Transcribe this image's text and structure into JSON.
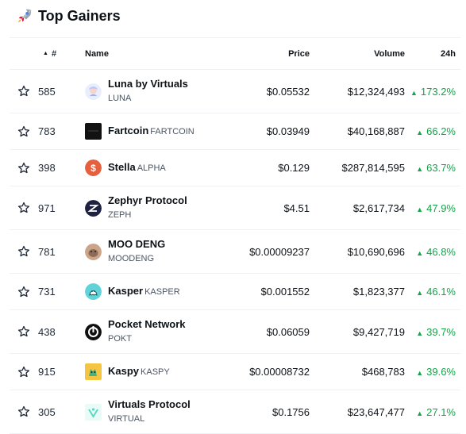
{
  "header": {
    "title": "Top Gainers",
    "icon": "rocket-icon"
  },
  "columns": {
    "rank": "#",
    "name": "Name",
    "price": "Price",
    "volume": "Volume",
    "change": "24h"
  },
  "colors": {
    "positive": "#16a34a",
    "text": "#0d1217",
    "muted": "#4b5563",
    "divider": "#eef0f3"
  },
  "rows": [
    {
      "rank": "585",
      "name": "Luna by Virtuals",
      "symbol": "LUNA",
      "symbol_below": true,
      "price": "$0.05532",
      "volume": "$12,324,493",
      "change": "173.2%",
      "icon": "luna-icon"
    },
    {
      "rank": "783",
      "name": "Fartcoin",
      "symbol": "FARTCOIN",
      "symbol_below": false,
      "price": "$0.03949",
      "volume": "$40,168,887",
      "change": "66.2%",
      "icon": "fartcoin-icon"
    },
    {
      "rank": "398",
      "name": "Stella",
      "symbol": "ALPHA",
      "symbol_below": false,
      "price": "$0.129",
      "volume": "$287,814,595",
      "change": "63.7%",
      "icon": "stella-icon"
    },
    {
      "rank": "971",
      "name": "Zephyr Protocol",
      "symbol": "ZEPH",
      "symbol_below": true,
      "price": "$4.51",
      "volume": "$2,617,734",
      "change": "47.9%",
      "icon": "zephyr-icon"
    },
    {
      "rank": "781",
      "name": "MOO DENG",
      "symbol": "MOODENG",
      "symbol_below": true,
      "price": "$0.00009237",
      "volume": "$10,690,696",
      "change": "46.8%",
      "icon": "moodeng-icon"
    },
    {
      "rank": "731",
      "name": "Kasper",
      "symbol": "KASPER",
      "symbol_below": false,
      "price": "$0.001552",
      "volume": "$1,823,377",
      "change": "46.1%",
      "icon": "kasper-icon"
    },
    {
      "rank": "438",
      "name": "Pocket Network",
      "symbol": "POKT",
      "symbol_below": true,
      "price": "$0.06059",
      "volume": "$9,427,719",
      "change": "39.7%",
      "icon": "pocket-network-icon"
    },
    {
      "rank": "915",
      "name": "Kaspy",
      "symbol": "KASPY",
      "symbol_below": false,
      "price": "$0.00008732",
      "volume": "$468,783",
      "change": "39.6%",
      "icon": "kaspy-icon"
    },
    {
      "rank": "305",
      "name": "Virtuals Protocol",
      "symbol": "VIRTUAL",
      "symbol_below": true,
      "price": "$0.1756",
      "volume": "$23,647,477",
      "change": "27.1%",
      "icon": "virtuals-icon"
    }
  ]
}
